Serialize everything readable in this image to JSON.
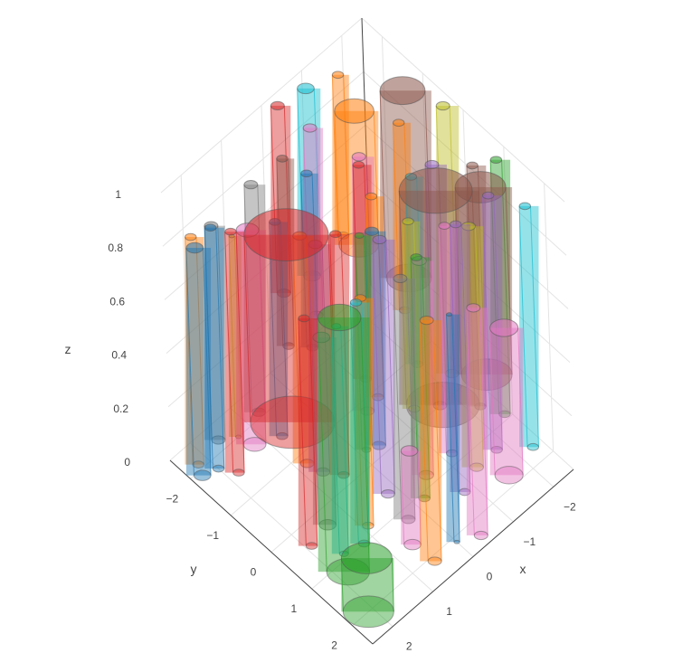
{
  "chart_data": {
    "type": "3d-cylinders",
    "title": "",
    "axes": {
      "x": {
        "label": "x",
        "range": [
          -2.5,
          2.5
        ],
        "ticks": [
          "−2",
          "−1",
          "0",
          "1",
          "2"
        ],
        "tick_values": [
          -2,
          -1,
          0,
          1,
          2
        ]
      },
      "y": {
        "label": "y",
        "range": [
          -2.5,
          2.5
        ],
        "ticks": [
          "−2",
          "−1",
          "0",
          "1",
          "2"
        ],
        "tick_values": [
          -2,
          -1,
          0,
          1,
          2
        ]
      },
      "z": {
        "label": "z",
        "range": [
          0,
          1
        ],
        "ticks": [
          "0",
          "0.2",
          "0.4",
          "0.6",
          "0.8",
          "1"
        ],
        "tick_values": [
          0,
          0.2,
          0.4,
          0.6,
          0.8,
          1
        ]
      }
    },
    "grid": true,
    "palette": [
      "#1f77b4",
      "#ff7f0e",
      "#2ca02c",
      "#d62728",
      "#9467bd",
      "#8c564b",
      "#e377c2",
      "#7f7f7f",
      "#bcbd22",
      "#17becf"
    ],
    "series": [
      {
        "x": 0.0,
        "y": 2.1,
        "r": 0.05,
        "z0": 0,
        "z1": 0.85,
        "color": "#1f77b4"
      },
      {
        "x": 2.1,
        "y": 2.0,
        "r": 0.45,
        "z0": 0,
        "z1": 0.2,
        "color": "#2ca02c"
      },
      {
        "x": 0.6,
        "y": 1.6,
        "r": 0.15,
        "z0": 0,
        "z1": 0.35,
        "color": "#e377c2"
      },
      {
        "x": 0.55,
        "y": 2.1,
        "r": 0.12,
        "z0": 0,
        "z1": 0.9,
        "color": "#ff7f0e"
      },
      {
        "x": 1.8,
        "y": 1.2,
        "r": 0.38,
        "z0": 0,
        "z1": 0.95,
        "color": "#2ca02c"
      },
      {
        "x": 1.2,
        "y": 1.0,
        "r": 0.1,
        "z0": 0,
        "z1": 0.9,
        "color": "#17becf"
      },
      {
        "x": -0.4,
        "y": 2.3,
        "r": 0.12,
        "z0": 0,
        "z1": 0.85,
        "color": "#e377c2"
      },
      {
        "x": -0.55,
        "y": 0.8,
        "r": 0.13,
        "z0": 0,
        "z1": 0.8,
        "color": "#e377c2"
      },
      {
        "x": -0.8,
        "y": 1.5,
        "r": 0.1,
        "z0": 0,
        "z1": 1.0,
        "color": "#9467bd"
      },
      {
        "x": -1.6,
        "y": 1.8,
        "r": 0.25,
        "z0": 0,
        "z1": 0.55,
        "color": "#e377c2"
      },
      {
        "x": 1.5,
        "y": -0.4,
        "r": 0.75,
        "z0": 0.3,
        "z1": 1.0,
        "color": "#d62728"
      },
      {
        "x": 0.9,
        "y": 0.8,
        "r": 0.1,
        "z0": 0,
        "z1": 0.85,
        "color": "#ff7f0e"
      },
      {
        "x": 0.3,
        "y": 1.2,
        "r": 0.12,
        "z0": 0,
        "z1": 0.9,
        "color": "#7f7f7f"
      },
      {
        "x": 1.4,
        "y": 0.3,
        "r": 0.15,
        "z0": 0,
        "z1": 0.7,
        "color": "#7f7f7f"
      },
      {
        "x": -0.2,
        "y": 1.1,
        "r": 0.1,
        "z0": 0,
        "z1": 0.9,
        "color": "#2ca02c"
      },
      {
        "x": 0.2,
        "y": 0.6,
        "r": 0.12,
        "z0": 0,
        "z1": 0.95,
        "color": "#9467bd"
      },
      {
        "x": -0.9,
        "y": 0.3,
        "r": 0.1,
        "z0": 0.3,
        "z1": 1.0,
        "color": "#17becf"
      },
      {
        "x": -1.3,
        "y": 1.3,
        "r": 0.12,
        "z0": 0,
        "z1": 0.9,
        "color": "#bcbd22"
      },
      {
        "x": -1.2,
        "y": 0.6,
        "r": 0.65,
        "z0": 0.15,
        "z1": 0.95,
        "color": "#8c564b"
      },
      {
        "x": -2.0,
        "y": 0.9,
        "r": 0.45,
        "z0": 0.2,
        "z1": 0.9,
        "color": "#8c564b"
      },
      {
        "x": 0.5,
        "y": -0.2,
        "r": 0.1,
        "z0": 0,
        "z1": 0.9,
        "color": "#d62728"
      },
      {
        "x": -0.3,
        "y": -0.1,
        "r": 0.1,
        "z0": 0.2,
        "z1": 0.95,
        "color": "#ff7f0e"
      },
      {
        "x": 0.8,
        "y": -0.8,
        "r": 0.12,
        "z0": 0,
        "z1": 0.85,
        "color": "#ff7f0e"
      },
      {
        "x": 0.2,
        "y": -1.2,
        "r": 0.1,
        "z0": 0.3,
        "z1": 0.95,
        "color": "#1f77b4"
      },
      {
        "x": -0.7,
        "y": -0.8,
        "r": 0.12,
        "z0": 0,
        "z1": 0.95,
        "color": "#e377c2"
      },
      {
        "x": 1.2,
        "y": -1.7,
        "r": 0.2,
        "z0": 0,
        "z1": 0.8,
        "color": "#e377c2"
      },
      {
        "x": 1.8,
        "y": -1.5,
        "r": 0.1,
        "z0": 0,
        "z1": 0.9,
        "color": "#d62728"
      },
      {
        "x": 0.7,
        "y": -2.1,
        "r": 0.12,
        "z0": 0,
        "z1": 0.85,
        "color": "#7f7f7f"
      },
      {
        "x": 2.2,
        "y": -2.1,
        "r": 0.1,
        "z0": 0,
        "z1": 0.85,
        "color": "#ff7f0e"
      },
      {
        "x": 2.3,
        "y": -1.9,
        "r": 0.15,
        "z0": 0,
        "z1": 0.85,
        "color": "#1f77b4"
      },
      {
        "x": 2.0,
        "y": -1.8,
        "r": 0.1,
        "z0": 0,
        "z1": 0.9,
        "color": "#1f77b4"
      },
      {
        "x": 1.6,
        "y": -2.2,
        "r": 0.12,
        "z0": 0,
        "z1": 0.8,
        "color": "#7f7f7f"
      },
      {
        "x": 1.3,
        "y": -2.0,
        "r": 0.05,
        "z0": 0,
        "z1": 0.75,
        "color": "#bcbd22"
      },
      {
        "x": -0.2,
        "y": -2.3,
        "r": 0.12,
        "z0": 0.3,
        "z1": 1.0,
        "color": "#d62728"
      },
      {
        "x": -0.8,
        "y": -2.2,
        "r": 0.15,
        "z0": 0.3,
        "z1": 1.0,
        "color": "#17becf"
      },
      {
        "x": -1.4,
        "y": -2.0,
        "r": 0.1,
        "z0": 0.4,
        "z1": 1.0,
        "color": "#ff7f0e"
      },
      {
        "x": -1.1,
        "y": -1.3,
        "r": 0.35,
        "z0": 0.5,
        "z1": 1.0,
        "color": "#ff7f0e"
      },
      {
        "x": -2.0,
        "y": -1.0,
        "r": 0.4,
        "z0": 0.3,
        "z1": 1.0,
        "color": "#8c564b"
      },
      {
        "x": -2.3,
        "y": -0.3,
        "r": 0.12,
        "z0": 0,
        "z1": 1.0,
        "color": "#bcbd22"
      },
      {
        "x": -1.7,
        "y": 0.0,
        "r": 0.12,
        "z0": 0,
        "z1": 0.9,
        "color": "#9467bd"
      },
      {
        "x": -2.2,
        "y": 0.5,
        "r": 0.1,
        "z0": 0,
        "z1": 0.9,
        "color": "#8c564b"
      },
      {
        "x": -2.4,
        "y": 0.9,
        "r": 0.1,
        "z0": 0,
        "z1": 0.95,
        "color": "#2ca02c"
      },
      {
        "x": -2.3,
        "y": 1.7,
        "r": 0.1,
        "z0": 0,
        "z1": 0.9,
        "color": "#17becf"
      },
      {
        "x": -0.6,
        "y": 0.5,
        "r": 0.1,
        "z0": 0.2,
        "z1": 0.9,
        "color": "#bcbd22"
      },
      {
        "x": 0.0,
        "y": 0.2,
        "r": 0.12,
        "z0": 0.1,
        "z1": 0.9,
        "color": "#1f77b4"
      },
      {
        "x": 0.4,
        "y": 0.3,
        "r": 0.08,
        "z0": 0.15,
        "z1": 0.95,
        "color": "#2ca02c"
      },
      {
        "x": -0.4,
        "y": -0.5,
        "r": 0.1,
        "z0": 0.2,
        "z1": 1.0,
        "color": "#d62728"
      },
      {
        "x": 0.9,
        "y": -0.3,
        "r": 0.12,
        "z0": 0.05,
        "z1": 0.9,
        "color": "#9467bd"
      },
      {
        "x": 1.1,
        "y": -1.1,
        "r": 0.1,
        "z0": 0.1,
        "z1": 0.9,
        "color": "#1f77b4"
      },
      {
        "x": 0.3,
        "y": -1.7,
        "r": 0.1,
        "z0": 0.25,
        "z1": 0.95,
        "color": "#8c564b"
      },
      {
        "x": -0.3,
        "y": -1.6,
        "r": 0.12,
        "z0": 0.3,
        "z1": 1.0,
        "color": "#e377c2"
      },
      {
        "x": 1.9,
        "y": 0.4,
        "r": 0.1,
        "z0": 0,
        "z1": 0.85,
        "color": "#d62728"
      },
      {
        "x": 1.6,
        "y": 0.9,
        "r": 0.08,
        "z0": 0,
        "z1": 0.85,
        "color": "#17becf"
      },
      {
        "x": -1.0,
        "y": 1.0,
        "r": 0.1,
        "z0": 0.05,
        "z1": 0.9,
        "color": "#e377c2"
      },
      {
        "x": -1.8,
        "y": 1.3,
        "r": 0.1,
        "z0": 0,
        "z1": 0.95,
        "color": "#9467bd"
      },
      {
        "x": -1.5,
        "y": -0.6,
        "r": 0.1,
        "z0": 0.3,
        "z1": 1.0,
        "color": "#ff7f0e"
      }
    ]
  }
}
